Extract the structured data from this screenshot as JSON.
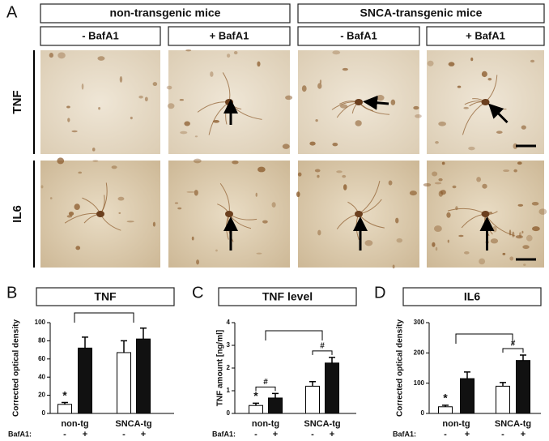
{
  "figure": {
    "panel_label": "A",
    "groups": [
      "non-transgenic mice",
      "SNCA-transgenic mice"
    ],
    "conditions": [
      "- BafA1",
      "+ BafA1",
      "- BafA1",
      "+ BafA1"
    ],
    "rows": [
      "TNF",
      "IL6"
    ]
  },
  "chart_data": [
    {
      "type": "bar",
      "panel_label": "B",
      "title": "TNF",
      "y_label": "Corrected optical density",
      "x_sublabel_title": "BafA1:",
      "categories": [
        "non-tg",
        "SNCA-tg"
      ],
      "series": [
        {
          "name": "-",
          "color": "#ffffff",
          "values": [
            10,
            67
          ],
          "errors": [
            2,
            13
          ]
        },
        {
          "name": "+",
          "color": "#111111",
          "values": [
            72,
            82
          ],
          "errors": [
            12,
            12
          ]
        }
      ],
      "ylim": [
        0,
        100
      ],
      "yticks": [
        0,
        20,
        40,
        60,
        80,
        100
      ],
      "annotations": [
        "*"
      ]
    },
    {
      "type": "bar",
      "panel_label": "C",
      "title": "TNF level",
      "y_label": "TNF amount [ng/ml]",
      "x_sublabel_title": "BafA1:",
      "categories": [
        "non-tg",
        "SNCA-tg"
      ],
      "series": [
        {
          "name": "-",
          "color": "#ffffff",
          "values": [
            0.35,
            1.2
          ],
          "errors": [
            0.1,
            0.2
          ]
        },
        {
          "name": "+",
          "color": "#111111",
          "values": [
            0.68,
            2.22
          ],
          "errors": [
            0.2,
            0.25
          ]
        }
      ],
      "ylim": [
        0,
        4
      ],
      "yticks": [
        0,
        1,
        2,
        3,
        4
      ],
      "annotations": [
        "*",
        "#",
        "#"
      ]
    },
    {
      "type": "bar",
      "panel_label": "D",
      "title": "IL6",
      "y_label": "Corrected optical density",
      "x_sublabel_title": "BafA1:",
      "categories": [
        "non-tg",
        "SNCA-tg"
      ],
      "series": [
        {
          "name": "-",
          "color": "#ffffff",
          "values": [
            22,
            90
          ],
          "errors": [
            5,
            12
          ]
        },
        {
          "name": "+",
          "color": "#111111",
          "values": [
            115,
            175
          ],
          "errors": [
            22,
            18
          ]
        }
      ],
      "ylim": [
        0,
        300
      ],
      "yticks": [
        0,
        100,
        200,
        300
      ],
      "annotations": [
        "*",
        "#"
      ]
    }
  ]
}
